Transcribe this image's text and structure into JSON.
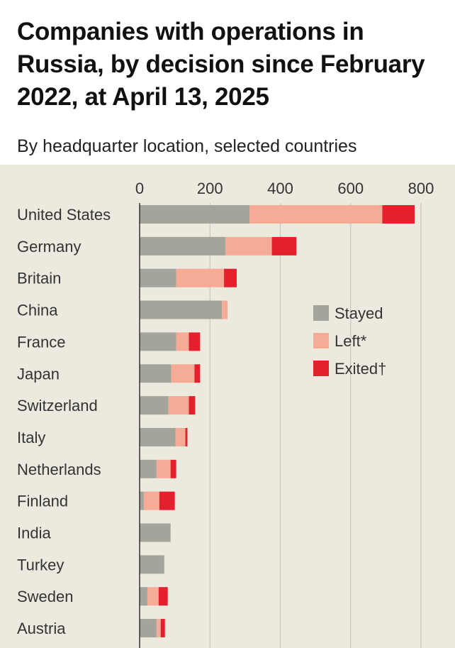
{
  "chart_data": {
    "type": "bar",
    "orientation": "horizontal",
    "stacked": true,
    "title": "Companies with operations in Russia, by decision since February 2022, at April 13, 2025",
    "subtitle": "By headquarter location, selected countries",
    "xlim": [
      0,
      800
    ],
    "xticks": [
      "0",
      "200",
      "400",
      "600",
      "800"
    ],
    "grid": true,
    "legend_position": "right",
    "categories": [
      "United States",
      "Germany",
      "Britain",
      "China",
      "France",
      "Japan",
      "Switzerland",
      "Italy",
      "Netherlands",
      "Finland",
      "India",
      "Turkey",
      "Sweden",
      "Austria"
    ],
    "series": [
      {
        "name": "Stayed",
        "legend_label": "Stayed",
        "color": "#a3a49a",
        "values": [
          313,
          244,
          104,
          234,
          104,
          90,
          82,
          102,
          48,
          12,
          88,
          70,
          22,
          48
        ]
      },
      {
        "name": "Left",
        "legend_label": "Left*",
        "color": "#f6ab96",
        "values": [
          377,
          132,
          136,
          16,
          36,
          66,
          58,
          28,
          40,
          44,
          0,
          0,
          32,
          12
        ]
      },
      {
        "name": "Exited",
        "legend_label": "Exited†",
        "color": "#e3202b",
        "values": [
          92,
          70,
          36,
          0,
          32,
          16,
          18,
          6,
          16,
          44,
          0,
          0,
          26,
          12
        ]
      }
    ]
  }
}
